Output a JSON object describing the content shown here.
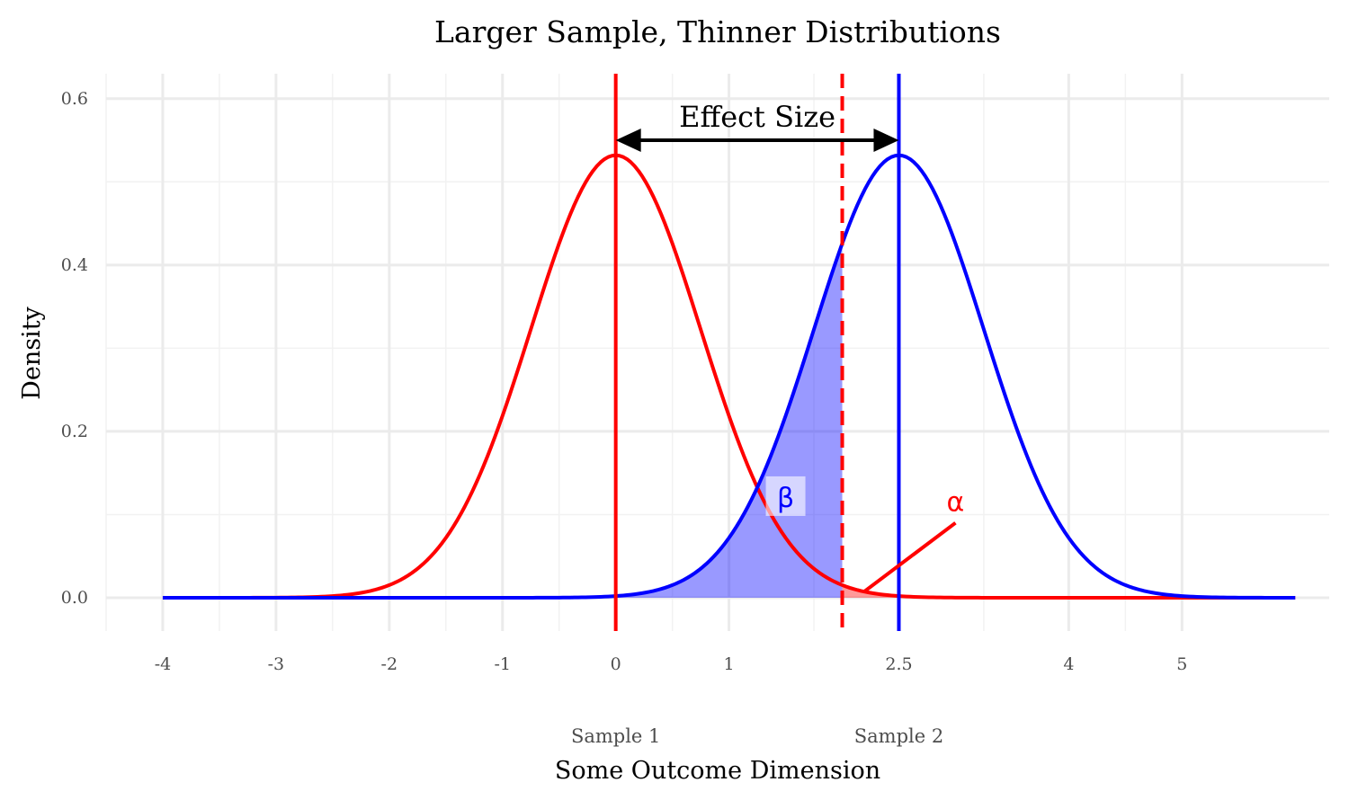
{
  "chart_data": {
    "type": "line",
    "title": "Larger Sample, Thinner Distributions",
    "xlabel": "Some Outcome Dimension",
    "ylabel": "Density",
    "xlim": [
      -4.5,
      6.3
    ],
    "ylim": [
      -0.04,
      0.63
    ],
    "x_ticks": [
      -4,
      -3,
      -2,
      -1,
      0,
      1,
      2.5,
      4,
      5
    ],
    "x_tick_labels": [
      "-4",
      "-3",
      "-2",
      "-1",
      "0",
      "1",
      "2.5",
      "4",
      "5"
    ],
    "y_ticks": [
      0.0,
      0.2,
      0.4,
      0.6
    ],
    "y_tick_labels": [
      "0.0",
      "0.2",
      "0.4",
      "0.6"
    ],
    "grid": true,
    "series": [
      {
        "color": "#ff0000",
        "mean": 0,
        "sd": 0.75,
        "x_range": [
          -4,
          6
        ]
      },
      {
        "color": "#0000ff",
        "mean": 2.5,
        "sd": 0.75,
        "x_range": [
          -4,
          6
        ]
      }
    ],
    "vertical_lines": [
      {
        "x": 0,
        "color": "#ff0000",
        "style": "solid"
      },
      {
        "x": 2.5,
        "color": "#0000ff",
        "style": "solid"
      },
      {
        "x": 2.0,
        "color": "#ff0000",
        "style": "dashed"
      }
    ],
    "secondary_labels": [
      {
        "x": 0,
        "label": "Sample 1"
      },
      {
        "x": 2.5,
        "label": "Sample 2"
      }
    ],
    "effect_size": {
      "label": "Effect Size",
      "from": 0,
      "to": 2.5,
      "y": 0.55
    },
    "beta": {
      "label": "β",
      "x": 1.5,
      "y": 0.12,
      "shade_from": 0,
      "shade_to": 2.0,
      "color": "#0000ff"
    },
    "alpha": {
      "label": "α",
      "x": 3.0,
      "y": 0.115,
      "pointer_from": [
        3.0,
        0.09
      ],
      "pointer_to": [
        2.2,
        0.008
      ],
      "shade_from": 2.0,
      "shade_to": 6,
      "color": "#ff0000"
    }
  }
}
